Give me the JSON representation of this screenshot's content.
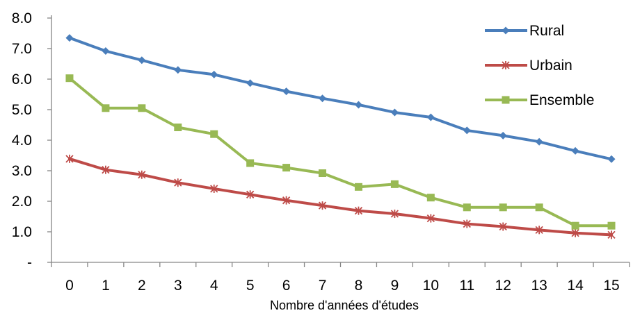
{
  "chart_data": {
    "type": "line",
    "title": "",
    "xlabel": "Nombre d'années d'études",
    "ylabel": "",
    "x": [
      0,
      1,
      2,
      3,
      4,
      5,
      6,
      7,
      8,
      9,
      10,
      11,
      12,
      13,
      14,
      15
    ],
    "y_ticks": [
      "-",
      "1.0",
      "2.0",
      "3.0",
      "4.0",
      "5.0",
      "6.0",
      "7.0",
      "8.0"
    ],
    "ylim": [
      0,
      8
    ],
    "grid": false,
    "legend_position": "top-right",
    "series": [
      {
        "name": "Rural",
        "color": "#4a7ebb",
        "marker": "diamond",
        "values": [
          7.35,
          6.92,
          6.62,
          6.3,
          6.15,
          5.87,
          5.6,
          5.37,
          5.16,
          4.91,
          4.75,
          4.32,
          4.15,
          3.95,
          3.65,
          3.38
        ]
      },
      {
        "name": "Urbain",
        "color": "#be4b48",
        "marker": "star",
        "values": [
          3.39,
          3.03,
          2.87,
          2.61,
          2.41,
          2.22,
          2.03,
          1.86,
          1.69,
          1.59,
          1.44,
          1.26,
          1.17,
          1.06,
          0.96,
          0.9
        ]
      },
      {
        "name": "Ensemble",
        "color": "#98b954",
        "marker": "square",
        "values": [
          6.03,
          5.05,
          5.05,
          4.42,
          4.2,
          3.25,
          3.1,
          2.92,
          2.47,
          2.56,
          2.12,
          1.8,
          1.8,
          1.8,
          1.2,
          1.2
        ]
      }
    ]
  }
}
